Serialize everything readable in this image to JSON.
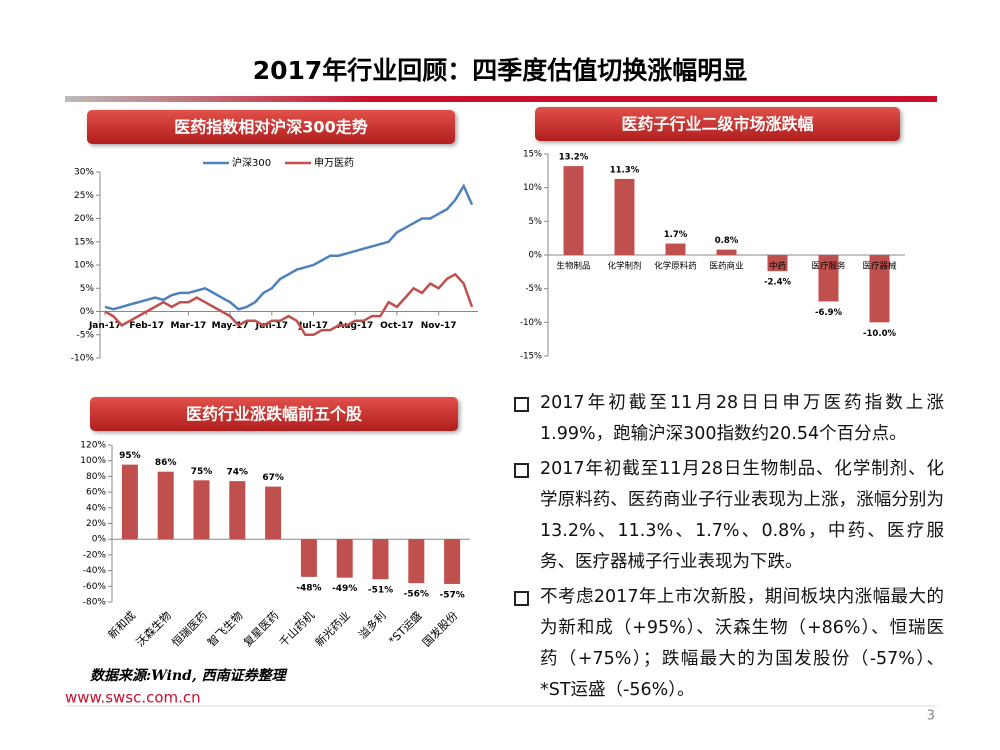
{
  "title": "2017年行业回顾：四季度估值切换涨幅明显",
  "chart_data": [
    {
      "type": "line",
      "title": "医药指数相对沪深300走势",
      "categories": [
        "Jan-17",
        null,
        null,
        null,
        null,
        "Feb-17",
        null,
        null,
        null,
        null,
        "Mar-17",
        null,
        null,
        null,
        null,
        "May-17",
        null,
        null,
        null,
        null,
        "Jun-17",
        null,
        null,
        null,
        null,
        "Jul-17",
        null,
        null,
        null,
        null,
        "Aug-17",
        null,
        null,
        null,
        null,
        "Oct-17",
        null,
        null,
        null,
        null,
        "Nov-17",
        null,
        null,
        null,
        null
      ],
      "series": [
        {
          "name": "沪深300",
          "color": "#4f81bd",
          "values": [
            1,
            0.5,
            1,
            1.5,
            2,
            2.5,
            3,
            2.5,
            3.5,
            4,
            4,
            4.5,
            5,
            4,
            3,
            2,
            0.5,
            1,
            2,
            4,
            5,
            7,
            8,
            9,
            9.5,
            10,
            11,
            12,
            12,
            12.5,
            13,
            13.5,
            14,
            14.5,
            15,
            17,
            18,
            19,
            20,
            20,
            21,
            22,
            24,
            27,
            23
          ]
        },
        {
          "name": "申万医药",
          "color": "#c0504d",
          "values": [
            0,
            -1,
            -3,
            -2,
            -1,
            0,
            1,
            2,
            1,
            2,
            2,
            3,
            2,
            1,
            0,
            -1,
            -3,
            -2,
            -2,
            -3,
            -2,
            -2,
            -1,
            -2,
            -5,
            -5,
            -4,
            -4,
            -3,
            -3,
            -2,
            -2,
            -1,
            -1,
            2,
            1,
            3,
            5,
            4,
            6,
            5,
            7,
            8,
            6,
            1
          ]
        }
      ],
      "ylim": [
        -10,
        30
      ],
      "yticks": [
        {
          "value": -10,
          "label": "-10%"
        },
        {
          "value": -5,
          "label": "-5%"
        },
        {
          "value": 0,
          "label": "0%"
        },
        {
          "value": 5,
          "label": "5%"
        },
        {
          "value": 10,
          "label": "10%"
        },
        {
          "value": 15,
          "label": "15%"
        },
        {
          "value": 20,
          "label": "20%"
        },
        {
          "value": 25,
          "label": "25%"
        },
        {
          "value": 30,
          "label": "30%"
        }
      ],
      "legend": "top"
    },
    {
      "type": "bar",
      "title": "医药子行业二级市场涨跌幅",
      "color": "#c0504d",
      "categories": [
        "生物制品",
        "化学制剂",
        "化学原料药",
        "医药商业",
        "中药",
        "医疗服务",
        "医疗器械"
      ],
      "values": [
        13.2,
        11.3,
        1.7,
        0.8,
        -2.4,
        -6.9,
        -10.0
      ],
      "value_labels": [
        "13.2%",
        "11.3%",
        "1.7%",
        "0.8%",
        "-2.4%",
        "-6.9%",
        "-10.0%"
      ],
      "ylim": [
        -15,
        15
      ],
      "yticks": [
        {
          "value": -15,
          "label": "-15%"
        },
        {
          "value": -10,
          "label": "-10%"
        },
        {
          "value": -5,
          "label": "-5%"
        },
        {
          "value": 0,
          "label": "0%"
        },
        {
          "value": 5,
          "label": "5%"
        },
        {
          "value": 10,
          "label": "10%"
        },
        {
          "value": 15,
          "label": "15%"
        }
      ]
    },
    {
      "type": "bar",
      "title": "医药行业涨跌幅前五个股",
      "color": "#c0504d",
      "categories": [
        "新和成",
        "沃森生物",
        "恒瑞医药",
        "智飞生物",
        "复星医药",
        "千山药机",
        "新光药业",
        "溢多利",
        "*ST运盛",
        "国发股份"
      ],
      "values": [
        95,
        86,
        75,
        74,
        67,
        -48,
        -49,
        -51,
        -56,
        -57
      ],
      "value_labels": [
        "95%",
        "86%",
        "75%",
        "74%",
        "67%",
        "-48%",
        "-49%",
        "-51%",
        "-56%",
        "-57%"
      ],
      "ylim": [
        -80,
        120
      ],
      "yticks": [
        {
          "value": -80,
          "label": "-80%"
        },
        {
          "value": -60,
          "label": "-60%"
        },
        {
          "value": -40,
          "label": "-40%"
        },
        {
          "value": -20,
          "label": "-20%"
        },
        {
          "value": 0,
          "label": "0%"
        },
        {
          "value": 20,
          "label": "20%"
        },
        {
          "value": 40,
          "label": "40%"
        },
        {
          "value": 60,
          "label": "60%"
        },
        {
          "value": 80,
          "label": "80%"
        },
        {
          "value": 100,
          "label": "100%"
        },
        {
          "value": 120,
          "label": "120%"
        }
      ]
    }
  ],
  "bullets": [
    "2017年初截至11月28日日申万医药指数上涨1.99%，跑输沪深300指数约20.54个百分点。",
    "2017年初截至11月28日生物制品、化学制剂、化学原料药、医药商业子行业表现为上涨，涨幅分别为13.2%、11.3%、1.7%、0.8%，中药、医疗服务、医疗器械子行业表现为下跌。",
    "不考虑2017年上市次新股，期间板块内涨幅最大的为新和成（+95%）、沃森生物（+86%）、恒瑞医药（+75%）；跌幅最大的为国发股份（-57%）、*ST运盛（-56%）。"
  ],
  "source": "数据来源:Wind, 西南证券整理",
  "website": "www.swsc.com.cn",
  "page_number": "3"
}
